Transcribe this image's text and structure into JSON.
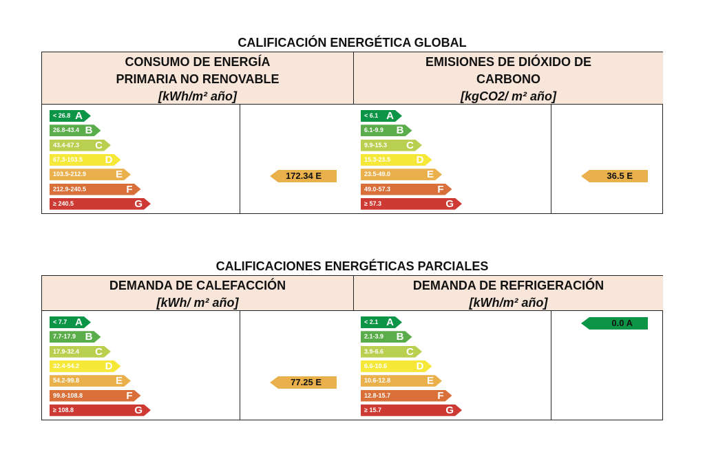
{
  "colors": {
    "A": "#0c9447",
    "B": "#5aad4a",
    "C": "#b9cf4f",
    "D": "#f5e839",
    "E": "#eab04c",
    "F": "#d9703a",
    "G": "#cd3a33"
  },
  "letters": [
    "A",
    "B",
    "C",
    "D",
    "E",
    "F",
    "G"
  ],
  "global": {
    "title": "CALIFICACIÓN ENERGÉTICA GLOBAL",
    "left": {
      "h1": "CONSUMO DE ENERGÍA",
      "h2": "PRIMARIA NO RENOVABLE",
      "unit": "[kWh/m² año]",
      "ranges": [
        "< 26.8",
        "26.8-43.4",
        "43.4-67.3",
        "67.3-103.5",
        "103.5-212.9",
        "212.9-240.5",
        "≥ 240.5"
      ],
      "value": "172.34 E",
      "class": "E"
    },
    "right": {
      "h1": "EMISIONES DE DIÓXIDO DE",
      "h2": "CARBONO",
      "unit": "[kgCO2/ m² año]",
      "ranges": [
        "< 6.1",
        "6.1-9.9",
        "9.9-15.3",
        "15.3-23.5",
        "23.5-49.0",
        "49.0-57.3",
        "≥ 57.3"
      ],
      "value": "36.5 E",
      "class": "E"
    }
  },
  "partial": {
    "title": "CALIFICACIONES ENERGÉTICAS PARCIALES",
    "left": {
      "h1": "DEMANDA DE CALEFACCIÓN",
      "unit": "[kWh/ m² año]",
      "ranges": [
        "< 7.7",
        "7.7-17.9",
        "17.9-32.4",
        "32.4-54.2",
        "54.2-99.8",
        "99.8-108.8",
        "≥ 108.8"
      ],
      "value": "77.25 E",
      "class": "E"
    },
    "right": {
      "h1": "DEMANDA DE REFRIGERACIÓN",
      "unit": "[kWh/m² año]",
      "ranges": [
        "< 2.1",
        "2.1-3.9",
        "3.9-6.6",
        "6.6-10.6",
        "10.6-12.8",
        "12.8-15.7",
        "≥ 15.7"
      ],
      "value": "0.0 A",
      "class": "A"
    }
  }
}
